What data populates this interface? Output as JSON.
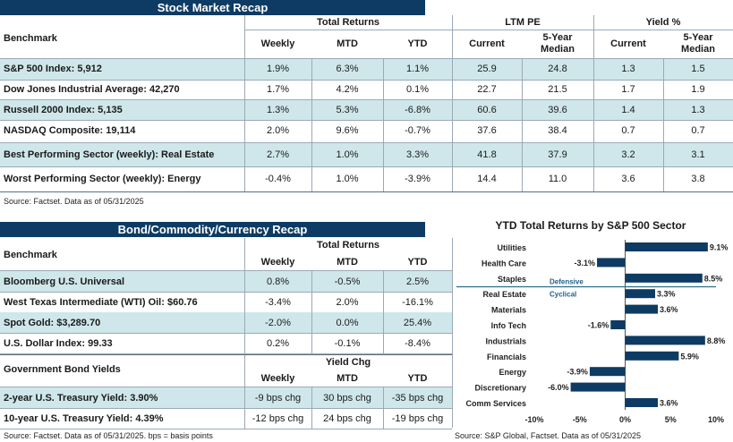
{
  "stock": {
    "title": "Stock Market Recap",
    "benchmark_label": "Benchmark",
    "group_total": "Total Returns",
    "group_pe": "LTM PE",
    "group_yield": "Yield %",
    "col_weekly": "Weekly",
    "col_mtd": "MTD",
    "col_ytd": "YTD",
    "col_current": "Current",
    "col_median": "5-Year\nMedian",
    "rows": [
      {
        "name": "S&P 500 Index: 5,912",
        "weekly": "1.9%",
        "mtd": "6.3%",
        "ytd": "1.1%",
        "pe_cur": "25.9",
        "pe_med": "24.8",
        "y_cur": "1.3",
        "y_med": "1.5"
      },
      {
        "name": "Dow Jones Industrial Average: 42,270",
        "weekly": "1.7%",
        "mtd": "4.2%",
        "ytd": "0.1%",
        "pe_cur": "22.7",
        "pe_med": "21.5",
        "y_cur": "1.7",
        "y_med": "1.9"
      },
      {
        "name": "Russell 2000 Index: 5,135",
        "weekly": "1.3%",
        "mtd": "5.3%",
        "ytd": "-6.8%",
        "pe_cur": "60.6",
        "pe_med": "39.6",
        "y_cur": "1.4",
        "y_med": "1.3"
      },
      {
        "name": "NASDAQ Composite: 19,114",
        "weekly": "2.0%",
        "mtd": "9.6%",
        "ytd": "-0.7%",
        "pe_cur": "37.6",
        "pe_med": "38.4",
        "y_cur": "0.7",
        "y_med": "0.7"
      },
      {
        "name": "Best Performing Sector (weekly): Real Estate",
        "weekly": "2.7%",
        "mtd": "1.0%",
        "ytd": "3.3%",
        "pe_cur": "41.8",
        "pe_med": "37.9",
        "y_cur": "3.2",
        "y_med": "3.1"
      },
      {
        "name": "Worst Performing Sector (weekly): Energy",
        "weekly": "-0.4%",
        "mtd": "1.0%",
        "ytd": "-3.9%",
        "pe_cur": "14.4",
        "pe_med": "11.0",
        "y_cur": "3.6",
        "y_med": "3.8"
      }
    ],
    "source": "Source: Factset. Data as of 05/31/2025"
  },
  "bond": {
    "title": "Bond/Commodity/Currency Recap",
    "benchmark_label": "Benchmark",
    "group_total": "Total Returns",
    "col_weekly": "Weekly",
    "col_mtd": "MTD",
    "col_ytd": "YTD",
    "rows": [
      {
        "name": "Bloomberg U.S. Universal",
        "weekly": "0.8%",
        "mtd": "-0.5%",
        "ytd": "2.5%"
      },
      {
        "name": "West Texas Intermediate (WTI) Oil: $60.76",
        "weekly": "-3.4%",
        "mtd": "2.0%",
        "ytd": "-16.1%"
      },
      {
        "name": "Spot Gold: $3,289.70",
        "weekly": "-2.0%",
        "mtd": "0.0%",
        "ytd": "25.4%"
      },
      {
        "name": "U.S. Dollar Index: 99.33",
        "weekly": "0.2%",
        "mtd": "-0.1%",
        "ytd": "-8.4%"
      }
    ],
    "gov_label": "Government Bond Yields",
    "group_yield_chg": "Yield Chg",
    "gov_rows": [
      {
        "name": "2-year U.S. Treasury Yield: 3.90%",
        "weekly": "-9 bps chg",
        "mtd": "30 bps chg",
        "ytd": "-35 bps chg"
      },
      {
        "name": "10-year U.S. Treasury Yield: 4.39%",
        "weekly": "-12 bps chg",
        "mtd": "24 bps chg",
        "ytd": "-19 bps chg"
      }
    ],
    "source": "Source: Factset. Data as of 05/31/2025. bps = basis points"
  },
  "chart_data": {
    "type": "bar",
    "orientation": "horizontal",
    "title": "YTD Total Returns by S&P 500 Sector",
    "categories": [
      "Utilities",
      "Health Care",
      "Staples",
      "Real Estate",
      "Materials",
      "Info Tech",
      "Industrials",
      "Financials",
      "Energy",
      "Discretionary",
      "Comm Services"
    ],
    "values": [
      9.1,
      -3.1,
      8.5,
      3.3,
      3.6,
      -1.6,
      8.8,
      5.9,
      -3.9,
      -6.0,
      3.6
    ],
    "value_labels": [
      "9.1%",
      "-3.1%",
      "8.5%",
      "3.3%",
      "3.6%",
      "-1.6%",
      "8.8%",
      "5.9%",
      "-3.9%",
      "-6.0%",
      "3.6%"
    ],
    "xlim": [
      -10,
      10
    ],
    "xticks": [
      "-10%",
      "-5%",
      "0%",
      "5%",
      "10%"
    ],
    "xtick_values": [
      -10,
      -5,
      0,
      5,
      10
    ],
    "group_labels": {
      "defensive": "Defensive",
      "cyclical": "Cyclical"
    },
    "bar_color": "#0d3b63",
    "source": "Source: S&P Global, Factset. Data as of 05/31/2025"
  }
}
